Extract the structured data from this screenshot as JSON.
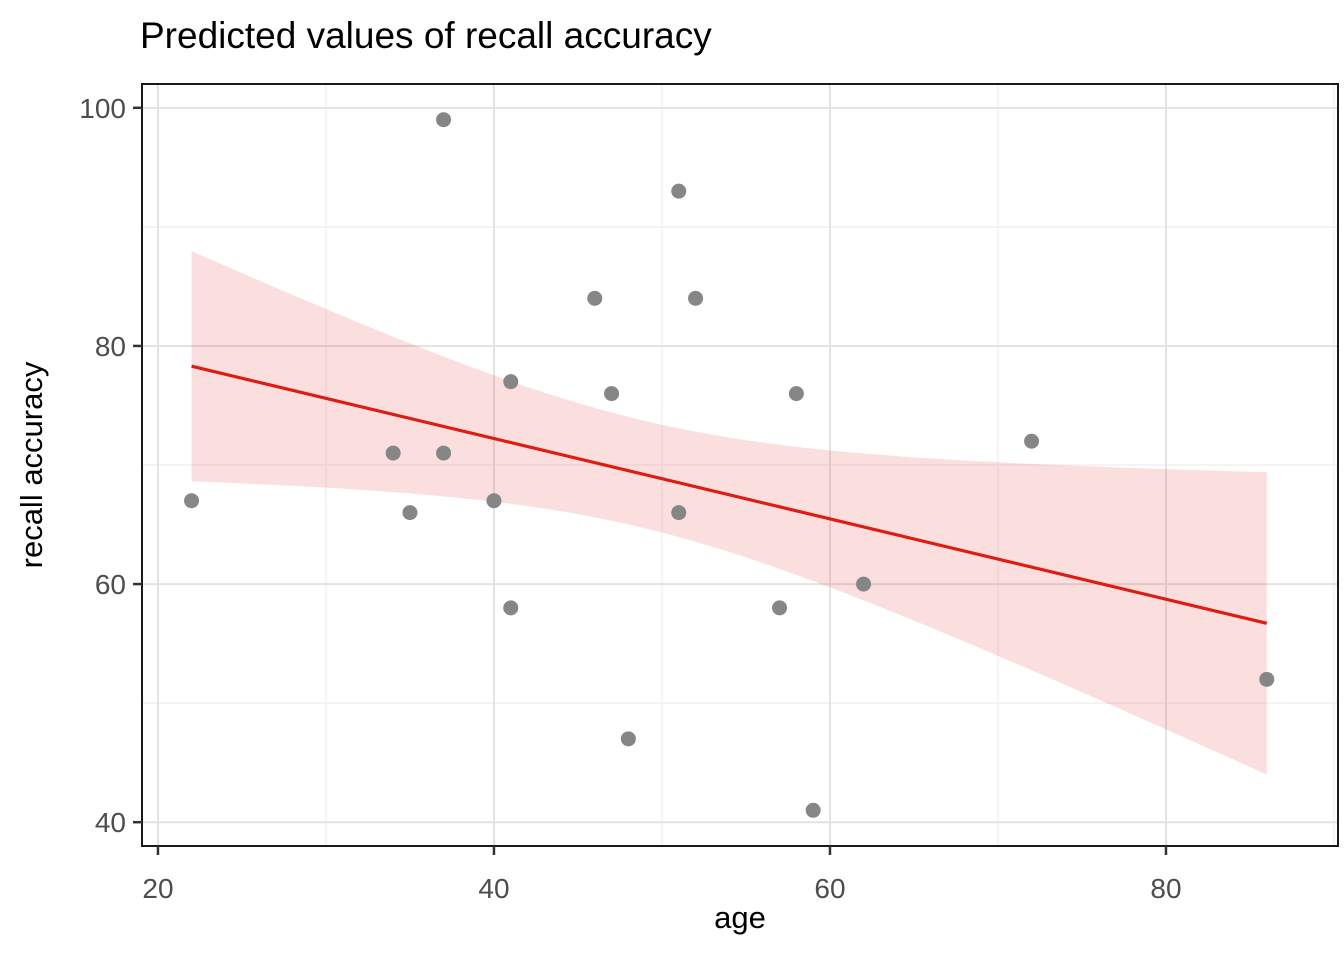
{
  "title": "Predicted values of recall accuracy",
  "chart_data": {
    "type": "scatter",
    "title": "Predicted values of recall accuracy",
    "xlabel": "age",
    "ylabel": "recall accuracy",
    "xlim": [
      19.05,
      90.24
    ],
    "ylim": [
      38.0,
      102.0
    ],
    "x_ticks": [
      20,
      40,
      60,
      80
    ],
    "y_ticks": [
      40,
      60,
      80,
      100
    ],
    "x_minor_gridlines": [
      30,
      50,
      70,
      90
    ],
    "y_minor_gridlines": [
      50,
      70,
      90
    ],
    "grid": true,
    "legend_position": "none",
    "points_xy": [
      [
        22,
        67
      ],
      [
        34,
        71
      ],
      [
        35,
        66
      ],
      [
        37,
        99
      ],
      [
        37,
        71
      ],
      [
        40,
        67
      ],
      [
        41,
        77
      ],
      [
        41,
        58
      ],
      [
        46,
        84
      ],
      [
        47,
        76
      ],
      [
        48,
        47
      ],
      [
        51,
        93
      ],
      [
        51,
        66
      ],
      [
        52,
        84
      ],
      [
        57,
        58
      ],
      [
        58,
        76
      ],
      [
        59,
        41
      ],
      [
        62,
        60
      ],
      [
        72,
        72
      ],
      [
        86,
        52
      ]
    ],
    "regression_line": {
      "x0": 22,
      "y0": 78.3,
      "x1": 86,
      "y1": 56.7
    },
    "confidence_band": {
      "x_min": 22,
      "x_max": 86,
      "t_times_se": 20.15,
      "n": 20,
      "x_mean": 48.8,
      "sxx": 3989.2,
      "upper_at_xmin": 88.0,
      "lower_at_xmin": 68.6,
      "upper_at_xmax": 69.4,
      "lower_at_xmax": 44.0
    },
    "colors": {
      "line": "#DD1C13",
      "band": "rgba(221,28,19,0.14)",
      "point": "#868686",
      "grid_major": "#E3E3E3",
      "grid_minor": "#F1F1F1",
      "panel_border": "#1A1A1A",
      "tick_mark": "#333333",
      "tick_label": "#4D4D4D",
      "text": "#000000",
      "background": "#FFFFFF"
    }
  }
}
